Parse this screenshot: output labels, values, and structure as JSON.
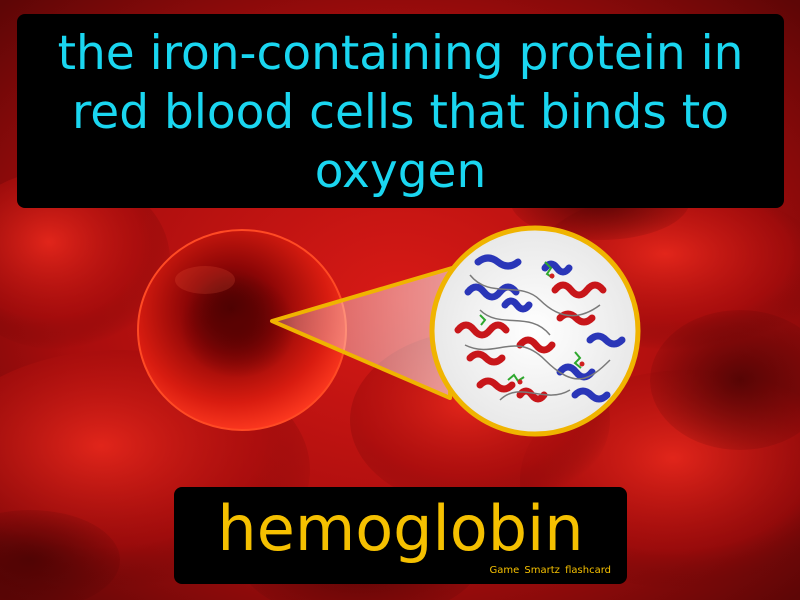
{
  "card": {
    "definition": "the iron-containing protein in red blood cells that binds to oxygen",
    "term": "hemoglobin",
    "brand": "Game Smartz flashcard"
  },
  "colors": {
    "definition_text": "#1ad6f0",
    "term_text": "#f5c000",
    "callout_border": "#f0b400",
    "background": "#c41212"
  },
  "illustration": {
    "subject": "red blood cell with magnified hemoglobin protein structure",
    "icons": [
      "red-blood-cell-icon",
      "protein-structure-icon"
    ]
  }
}
